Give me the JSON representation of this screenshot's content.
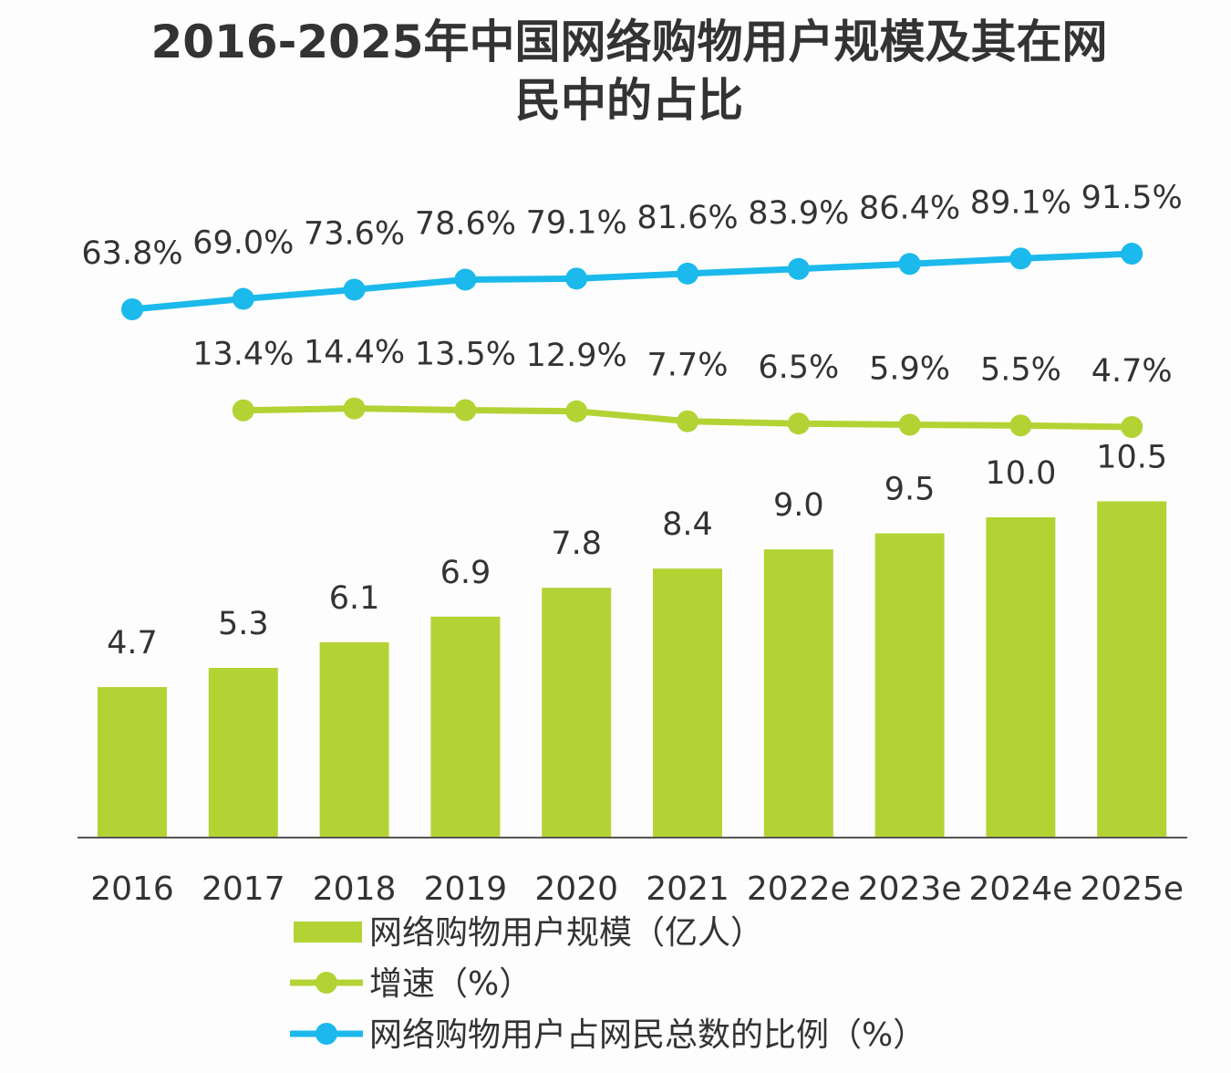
{
  "chart_data": {
    "type": "bar+line",
    "title": "2016-2025年中国网络购物用户规模及其在网民中的占比",
    "title_lines": [
      "2016-2025年中国网络购物用户规模及其在网",
      "民中的占比"
    ],
    "categories": [
      "2016",
      "2017",
      "2018",
      "2019",
      "2020",
      "2021",
      "2022e",
      "2023e",
      "2024e",
      "2025e"
    ],
    "series": [
      {
        "name": "网络购物用户规模（亿人）",
        "type": "bar",
        "color": "#b3d334",
        "values": [
          4.7,
          5.3,
          6.1,
          6.9,
          7.8,
          8.4,
          9.0,
          9.5,
          10.0,
          10.5
        ],
        "labels": [
          "4.7",
          "5.3",
          "6.1",
          "6.9",
          "7.8",
          "8.4",
          "9.0",
          "9.5",
          "10.0",
          "10.5"
        ]
      },
      {
        "name": "增速（%）",
        "type": "line",
        "color": "#b3d334",
        "values": [
          null,
          13.4,
          14.4,
          13.5,
          12.9,
          7.7,
          6.5,
          5.9,
          5.5,
          4.7
        ],
        "labels": [
          "",
          "13.4%",
          "14.4%",
          "13.5%",
          "12.9%",
          "7.7%",
          "6.5%",
          "5.9%",
          "5.5%",
          "4.7%"
        ]
      },
      {
        "name": "网络购物用户占网民总数的比例（%）",
        "type": "line",
        "color": "#1bb9ec",
        "values": [
          63.8,
          69.0,
          73.6,
          78.6,
          79.1,
          81.6,
          83.9,
          86.4,
          89.1,
          91.5
        ],
        "labels": [
          "63.8%",
          "69.0%",
          "73.6%",
          "78.6%",
          "79.1%",
          "81.6%",
          "83.9%",
          "86.4%",
          "89.1%",
          "91.5%"
        ]
      }
    ],
    "legend_position": "bottom",
    "grid": false,
    "axis_color": "#555555"
  }
}
